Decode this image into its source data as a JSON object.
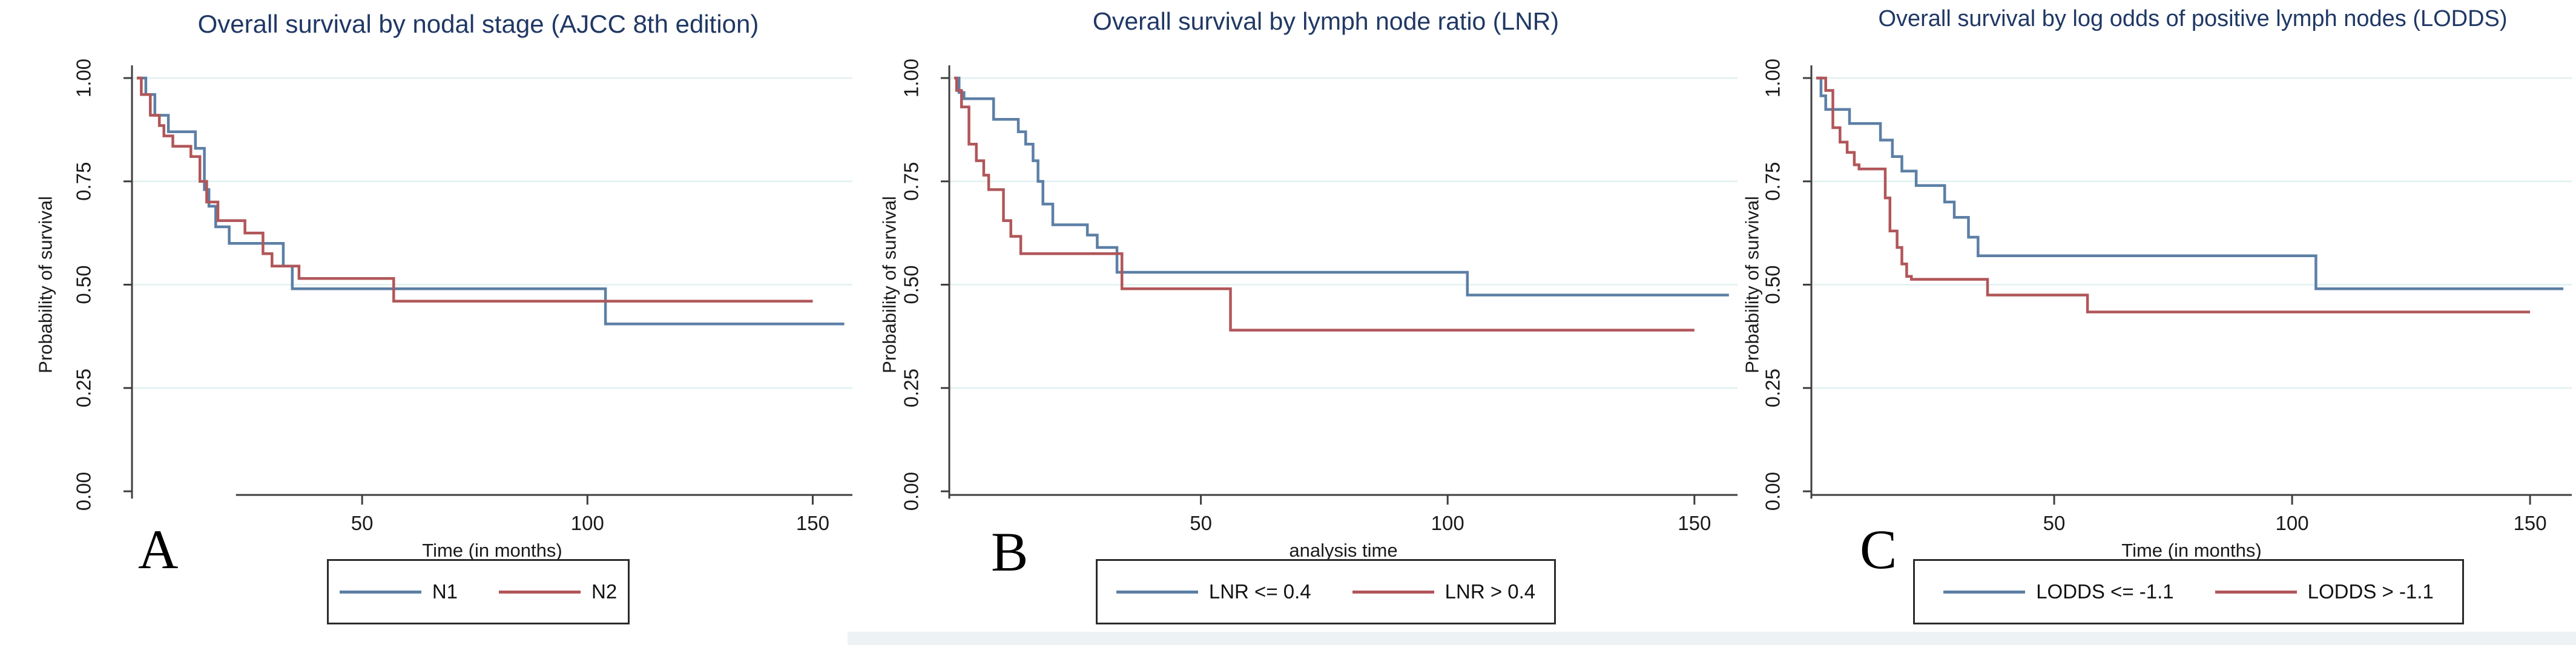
{
  "colors": {
    "blue": "#5c7fa5",
    "red": "#b15659",
    "title": "#203864",
    "grid": "#e2f0f1",
    "axis": "#3f3f3f",
    "tick_text": "#1a1a1a",
    "legend_border": "#2b2b2b",
    "background": "#ffffff",
    "bottom_strip": "#edf2f4"
  },
  "panels": [
    {
      "letter": "A"
    },
    {
      "letter": "B"
    },
    {
      "letter": "C"
    }
  ],
  "chart_data": [
    {
      "type": "line",
      "subtype": "kaplan_meier_step",
      "title": "Overall survival by nodal stage (AJCC 8th edition)",
      "xlabel": "Time (in months)",
      "ylabel": "Probability of survival",
      "xlim": [
        0,
        158
      ],
      "ylim": [
        0,
        1.03
      ],
      "xticks": [
        50,
        100,
        150
      ],
      "yticks": [
        1.0,
        0.75,
        0.5,
        0.25,
        0
      ],
      "ytick_labels": [
        "1.00",
        "0.75",
        "0.50",
        "0.25",
        "0.00"
      ],
      "grid": "horizontal",
      "legend_position": "bottom-center",
      "xaxis_line_start_t": 22,
      "series": [
        {
          "name": "N1",
          "color_key": "blue",
          "steps": [
            [
              0,
              1
            ],
            [
              2,
              1
            ],
            [
              2,
              0.96
            ],
            [
              4,
              0.96
            ],
            [
              4,
              0.91
            ],
            [
              7,
              0.91
            ],
            [
              7,
              0.87
            ],
            [
              13,
              0.87
            ],
            [
              13,
              0.83
            ],
            [
              15,
              0.83
            ],
            [
              15,
              0.73
            ],
            [
              16,
              0.73
            ],
            [
              16,
              0.69
            ],
            [
              17.5,
              0.69
            ],
            [
              17.5,
              0.64
            ],
            [
              20.5,
              0.64
            ],
            [
              20.5,
              0.6
            ],
            [
              32.5,
              0.6
            ],
            [
              32.5,
              0.545
            ],
            [
              34.5,
              0.545
            ],
            [
              34.5,
              0.49
            ],
            [
              104,
              0.49
            ],
            [
              104,
              0.405
            ],
            [
              157,
              0.405
            ]
          ]
        },
        {
          "name": "N2",
          "color_key": "red",
          "steps": [
            [
              0,
              1
            ],
            [
              1,
              1
            ],
            [
              1,
              0.96
            ],
            [
              3,
              0.96
            ],
            [
              3,
              0.91
            ],
            [
              5,
              0.91
            ],
            [
              5,
              0.885
            ],
            [
              6,
              0.885
            ],
            [
              6,
              0.86
            ],
            [
              8,
              0.86
            ],
            [
              8,
              0.835
            ],
            [
              12,
              0.835
            ],
            [
              12,
              0.81
            ],
            [
              14,
              0.81
            ],
            [
              14,
              0.75
            ],
            [
              15.5,
              0.75
            ],
            [
              15.5,
              0.7
            ],
            [
              18,
              0.7
            ],
            [
              18,
              0.655
            ],
            [
              24,
              0.655
            ],
            [
              24,
              0.625
            ],
            [
              28,
              0.625
            ],
            [
              28,
              0.575
            ],
            [
              30,
              0.575
            ],
            [
              30,
              0.545
            ],
            [
              36,
              0.545
            ],
            [
              36,
              0.515
            ],
            [
              57,
              0.515
            ],
            [
              57,
              0.46
            ],
            [
              150,
              0.46
            ]
          ]
        }
      ]
    },
    {
      "type": "line",
      "subtype": "kaplan_meier_step",
      "title": "Overall survival by lymph node ratio (LNR)",
      "xlabel": "analysis time",
      "ylabel": "Probability of survival",
      "xlim": [
        0,
        158
      ],
      "ylim": [
        0,
        1.03
      ],
      "xticks": [
        50,
        100,
        150
      ],
      "yticks": [
        1.0,
        0.75,
        0.5,
        0.25,
        0
      ],
      "ytick_labels": [
        "1.00",
        "0.75",
        "0.50",
        "0.25",
        "0.00"
      ],
      "grid": "horizontal",
      "legend_position": "bottom-center",
      "xaxis_line_start_t": 0,
      "series": [
        {
          "name": "LNR <= 0.4",
          "color_key": "blue",
          "steps": [
            [
              0,
              1
            ],
            [
              1,
              1
            ],
            [
              1,
              0.965
            ],
            [
              2,
              0.965
            ],
            [
              2,
              0.95
            ],
            [
              8,
              0.95
            ],
            [
              8,
              0.9
            ],
            [
              13,
              0.9
            ],
            [
              13,
              0.87
            ],
            [
              14.5,
              0.87
            ],
            [
              14.5,
              0.84
            ],
            [
              16,
              0.84
            ],
            [
              16,
              0.8
            ],
            [
              17,
              0.8
            ],
            [
              17,
              0.75
            ],
            [
              18,
              0.75
            ],
            [
              18,
              0.695
            ],
            [
              20,
              0.695
            ],
            [
              20,
              0.645
            ],
            [
              27,
              0.645
            ],
            [
              27,
              0.62
            ],
            [
              29,
              0.62
            ],
            [
              29,
              0.59
            ],
            [
              33,
              0.59
            ],
            [
              33,
              0.53
            ],
            [
              104,
              0.53
            ],
            [
              104,
              0.475
            ],
            [
              157,
              0.475
            ]
          ]
        },
        {
          "name": "LNR > 0.4",
          "color_key": "red",
          "steps": [
            [
              0,
              1
            ],
            [
              0.5,
              1
            ],
            [
              0.5,
              0.97
            ],
            [
              1.5,
              0.97
            ],
            [
              1.5,
              0.93
            ],
            [
              3,
              0.93
            ],
            [
              3,
              0.84
            ],
            [
              4.5,
              0.84
            ],
            [
              4.5,
              0.8
            ],
            [
              6,
              0.8
            ],
            [
              6,
              0.765
            ],
            [
              7,
              0.765
            ],
            [
              7,
              0.73
            ],
            [
              10,
              0.73
            ],
            [
              10,
              0.655
            ],
            [
              11.5,
              0.655
            ],
            [
              11.5,
              0.617
            ],
            [
              13.5,
              0.617
            ],
            [
              13.5,
              0.575
            ],
            [
              34,
              0.575
            ],
            [
              34,
              0.49
            ],
            [
              56,
              0.49
            ],
            [
              56,
              0.39
            ],
            [
              150,
              0.39
            ]
          ]
        }
      ]
    },
    {
      "type": "line",
      "subtype": "kaplan_meier_step",
      "title": "Overall survival by log odds of positive lymph nodes (LODDS)",
      "xlabel": "Time (in months)",
      "ylabel": "Probability of survival",
      "xlim": [
        0,
        158
      ],
      "ylim": [
        0,
        1.03
      ],
      "xticks": [
        50,
        100,
        150
      ],
      "yticks": [
        1.0,
        0.75,
        0.5,
        0.25,
        0
      ],
      "ytick_labels": [
        "1.00",
        "0.75",
        "0.50",
        "0.25",
        "0.00"
      ],
      "grid": "horizontal",
      "legend_position": "bottom-center",
      "xaxis_line_start_t": 0,
      "series": [
        {
          "name": "LODDS <= -1.1",
          "color_key": "blue",
          "steps": [
            [
              0,
              1
            ],
            [
              1,
              1
            ],
            [
              1,
              0.957
            ],
            [
              2,
              0.957
            ],
            [
              2,
              0.924
            ],
            [
              7,
              0.924
            ],
            [
              7,
              0.89
            ],
            [
              13.5,
              0.89
            ],
            [
              13.5,
              0.85
            ],
            [
              16,
              0.85
            ],
            [
              16,
              0.81
            ],
            [
              18,
              0.81
            ],
            [
              18,
              0.775
            ],
            [
              21,
              0.775
            ],
            [
              21,
              0.74
            ],
            [
              27,
              0.74
            ],
            [
              27,
              0.7
            ],
            [
              29,
              0.7
            ],
            [
              29,
              0.663
            ],
            [
              32,
              0.663
            ],
            [
              32,
              0.615
            ],
            [
              34,
              0.615
            ],
            [
              34,
              0.57
            ],
            [
              105,
              0.57
            ],
            [
              105,
              0.49
            ],
            [
              157,
              0.49
            ]
          ]
        },
        {
          "name": "LODDS > -1.1",
          "color_key": "red",
          "steps": [
            [
              0,
              1
            ],
            [
              2,
              1
            ],
            [
              2,
              0.97
            ],
            [
              3.5,
              0.97
            ],
            [
              3.5,
              0.88
            ],
            [
              5,
              0.88
            ],
            [
              5,
              0.845
            ],
            [
              6.5,
              0.845
            ],
            [
              6.5,
              0.82
            ],
            [
              8,
              0.82
            ],
            [
              8,
              0.79
            ],
            [
              9,
              0.79
            ],
            [
              9,
              0.78
            ],
            [
              14.5,
              0.78
            ],
            [
              14.5,
              0.71
            ],
            [
              15.5,
              0.71
            ],
            [
              15.5,
              0.63
            ],
            [
              17,
              0.63
            ],
            [
              17,
              0.59
            ],
            [
              18,
              0.59
            ],
            [
              18,
              0.55
            ],
            [
              19,
              0.55
            ],
            [
              19,
              0.52
            ],
            [
              20,
              0.52
            ],
            [
              20,
              0.513
            ],
            [
              36,
              0.513
            ],
            [
              36,
              0.475
            ],
            [
              57,
              0.475
            ],
            [
              57,
              0.434
            ],
            [
              150,
              0.434
            ]
          ]
        }
      ]
    }
  ]
}
